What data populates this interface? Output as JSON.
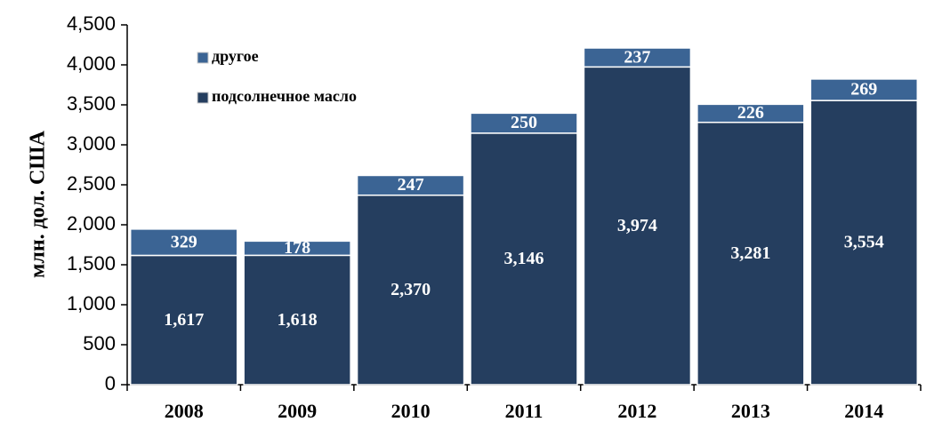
{
  "chart_data": {
    "type": "bar",
    "stacked": true,
    "y_label": "млн. дол. США",
    "categories": [
      "2008",
      "2009",
      "2010",
      "2011",
      "2012",
      "2013",
      "2014"
    ],
    "series": [
      {
        "name": "подсолнечное масло",
        "color": "#253e5f",
        "values": [
          1617,
          1618,
          2370,
          3146,
          3974,
          3281,
          3554
        ],
        "value_labels": [
          "1,617",
          "1,618",
          "2,370",
          "3,146",
          "3,974",
          "3,281",
          "3,554"
        ]
      },
      {
        "name": "другое",
        "color": "#3b6494",
        "values": [
          329,
          178,
          247,
          250,
          237,
          226,
          269
        ]
      }
    ],
    "legend": "upper left",
    "grid": false,
    "ylim": [
      0,
      4500
    ],
    "yticks": [
      0,
      500,
      {
        "value": 1000,
        "label": "1,000"
      },
      {
        "value": 1500,
        "label": "1,500"
      },
      {
        "value": 2000,
        "label": "2,000"
      },
      {
        "value": 2500,
        "label": "2,500"
      },
      {
        "value": 3000,
        "label": "3,000"
      },
      {
        "value": 3500,
        "label": "3,500"
      },
      {
        "value": 4000,
        "label": "4,000"
      },
      {
        "value": 4500,
        "label": "4,500"
      }
    ]
  }
}
